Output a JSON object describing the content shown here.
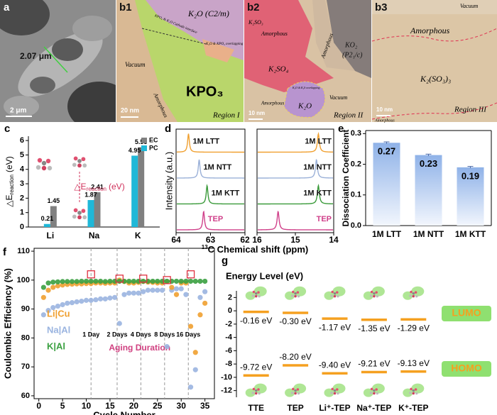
{
  "images": [
    {
      "panel": "a",
      "labels": [
        "2.07 μm",
        "2 μm"
      ]
    },
    {
      "panel": "b1",
      "labels": [
        "K₂O (C2/m)",
        "KPO₄ & K₂O Cathode interface",
        "K₂O & KPO₃ overlapping",
        "Vacuum",
        "KPO₃",
        "Amorphous",
        "20 nm",
        "Region I"
      ]
    },
    {
      "panel": "b2",
      "labels": [
        "K₂SO₃",
        "Amorphous",
        "K₂SO₄",
        "KO₂",
        "(P2₁/c)",
        "Amorphous",
        "K₂O & K₂S overlapping",
        "K₂O",
        "Amorphous",
        "Vacuum",
        "10 nm",
        "Region II"
      ]
    },
    {
      "panel": "b3",
      "labels": [
        "Vacuum",
        "Amorphous",
        "K₂(SO₃)₃",
        "10 nm",
        "Region III",
        "Amorphous"
      ]
    }
  ],
  "chart_data": [
    {
      "type": "bar",
      "panel": "c",
      "ylabel": "△E",
      "ylabel_sub": "reaction",
      "ylabel_unit": "(eV)",
      "annotation": "△E",
      "annotation_sub": "reaction",
      "annotation_unit": "(eV)",
      "categories": [
        "Li",
        "Na",
        "K"
      ],
      "series": [
        {
          "name": "EC",
          "color": "#808080",
          "values": [
            1.45,
            2.41,
            5.53
          ]
        },
        {
          "name": "PC",
          "color": "#1fb8d8",
          "values": [
            0.21,
            1.87,
            4.95
          ]
        }
      ],
      "ylim": [
        0,
        6.3
      ],
      "yticks": [
        0,
        1,
        2,
        3,
        4,
        5,
        6
      ]
    },
    {
      "type": "spectrum",
      "panel": "d",
      "ylabel": "Intensity (a.u.)",
      "xlabel_sup": "13",
      "xlabel": "C Chemical shift (ppm)",
      "subplots": [
        {
          "xlim": [
            64,
            62
          ],
          "xticks": [
            64,
            63,
            62
          ]
        },
        {
          "xlim": [
            16,
            14
          ],
          "xticks": [
            16,
            15,
            14
          ]
        }
      ],
      "series": [
        {
          "name": "1M LTT",
          "color": "#f0a030",
          "peaks": [
            63.64,
            14.4
          ]
        },
        {
          "name": "1M NTT",
          "color": "#9ab0d8",
          "peaks": [
            63.33,
            14.45
          ]
        },
        {
          "name": "1M KTT",
          "color": "#3a9a3a",
          "peaks": [
            63.1,
            14.4
          ]
        },
        {
          "name": "TEP",
          "color": "#d0408a",
          "peaks": [
            63.2,
            15.45
          ]
        }
      ]
    },
    {
      "type": "bar",
      "panel": "e",
      "ylabel": "Dissociation Coefficient",
      "categories": [
        "1M LTT",
        "1M NTT",
        "1M KTT"
      ],
      "values": [
        0.27,
        0.23,
        0.19
      ],
      "errors": [
        0.003,
        0.003,
        0.003
      ],
      "color": "#8fb2e8",
      "ylim": [
        0,
        0.31
      ],
      "yticks": [
        {
          "value": 0,
          "label": "0.0"
        },
        0.1,
        0.2,
        0.3
      ]
    },
    {
      "type": "scatter",
      "panel": "f",
      "xlabel": "Cycle Number",
      "ylabel": "Coulombic Efficiency (%)",
      "x": [
        1,
        2,
        3,
        4,
        5,
        6,
        7,
        8,
        9,
        10,
        11,
        12,
        13,
        14,
        15,
        16,
        17,
        18,
        19,
        20,
        21,
        22,
        23,
        24,
        25,
        26,
        27,
        28,
        29,
        30,
        31,
        32,
        33,
        34,
        35
      ],
      "series": [
        {
          "name": "Li|Cu",
          "color": "#f0a030",
          "values": [
            94,
            96.5,
            97.5,
            98,
            98.3,
            98.5,
            98.6,
            98.7,
            98.7,
            98.8,
            98.8,
            99,
            99,
            98.9,
            99,
            99,
            100,
            99.5,
            99,
            99,
            99.2,
            99.5,
            99.3,
            99.2,
            99,
            99,
            99.5,
            97.5,
            95,
            99,
            99,
            84,
            75,
            88,
            92
          ]
        },
        {
          "name": "Na|Al",
          "color": "#9ab4e0",
          "values": [
            88,
            89.5,
            90.5,
            91,
            91.5,
            92,
            92.2,
            92.5,
            92.7,
            93,
            93,
            93.2,
            93.5,
            93.5,
            93.8,
            94,
            85,
            95,
            95.5,
            95.5,
            95.5,
            96,
            96.5,
            96.5,
            96.5,
            96.5,
            77,
            96.5,
            97,
            97,
            95,
            63,
            69,
            94,
            96
          ]
        },
        {
          "name": "K|Al",
          "color": "#3aa040",
          "values": [
            97.5,
            99,
            99.3,
            99.4,
            99.5,
            99.5,
            99.5,
            99.5,
            99.6,
            99.6,
            99.6,
            99.6,
            99.6,
            99.5,
            99.6,
            99.6,
            99.6,
            99.6,
            99.6,
            99.6,
            99.6,
            99.6,
            99.6,
            99.6,
            99.6,
            99.6,
            99.6,
            99.6,
            99.6,
            99.6,
            99.6,
            99.6,
            99.6,
            99.6,
            99.6
          ]
        }
      ],
      "xlim": [
        -1,
        37
      ],
      "ylim": [
        59,
        111
      ],
      "xticks": [
        0,
        5,
        10,
        15,
        20,
        25,
        30,
        35
      ],
      "yticks": [
        60,
        70,
        80,
        90,
        100,
        110
      ],
      "aging": {
        "x": [
          11,
          16.5,
          21.5,
          26.5,
          31.5
        ],
        "labels": [
          "1 Day",
          "2 Days",
          "4 Days",
          "8 Days",
          "16 Days"
        ],
        "title": "Aging Duration"
      },
      "highlights": {
        "x": [
          11,
          17,
          22,
          27,
          32
        ],
        "y": [
          102,
          100.5,
          100.5,
          100,
          102
        ]
      }
    },
    {
      "type": "energy_level",
      "panel": "g",
      "ylabel": "Energy Level (eV)",
      "categories": [
        "TTE",
        "TEP",
        "Li⁺-TEP",
        "Na⁺-TEP",
        "K⁺-TEP"
      ],
      "series": [
        {
          "name": "LUMO",
          "color": "#f5a020",
          "values": [
            -0.16,
            -0.3,
            -1.17,
            -1.35,
            -1.29
          ],
          "value_labels": [
            "-0.16 eV",
            "-0.30 eV",
            "-1.17 eV",
            "-1.35 eV",
            "-1.29 eV"
          ]
        },
        {
          "name": "HOMO",
          "color": "#f5a020",
          "values": [
            -9.72,
            -8.2,
            -9.4,
            -9.21,
            -9.13
          ],
          "value_labels": [
            "-9.72 eV",
            "-8.20 eV",
            "-9.40 eV",
            "-9.21 eV",
            "-9.13 eV"
          ]
        }
      ],
      "ylim": [
        -13,
        3
      ],
      "yticks": [
        2,
        0,
        -2,
        -4,
        -6,
        -8,
        -10,
        -12
      ]
    }
  ]
}
